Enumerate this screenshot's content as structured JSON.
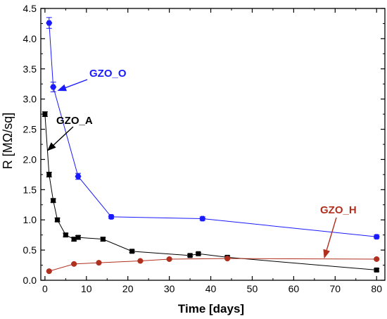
{
  "chart_data": {
    "type": "scatter",
    "title": "",
    "xlabel": "Time [days]",
    "ylabel": "R [MΩ/sq]",
    "xlim": [
      -1,
      82
    ],
    "ylim": [
      0,
      4.5
    ],
    "x_ticks": [
      0,
      10,
      20,
      30,
      40,
      50,
      60,
      70,
      80
    ],
    "y_ticks": [
      0.0,
      0.5,
      1.0,
      1.5,
      2.0,
      2.5,
      3.0,
      3.5,
      4.0,
      4.5
    ],
    "x_tick_labels": [
      "0",
      "10",
      "20",
      "30",
      "40",
      "50",
      "60",
      "70",
      "80"
    ],
    "y_tick_labels": [
      "0.0",
      "0.5",
      "1.0",
      "1.5",
      "2.0",
      "2.5",
      "3.0",
      "3.5",
      "4.0",
      "4.5"
    ],
    "grid": false,
    "series": [
      {
        "name": "GZO_O",
        "color": "#1a1aff",
        "marker": "hexagon",
        "x": [
          1,
          2,
          8,
          16,
          38,
          80
        ],
        "y": [
          4.26,
          3.2,
          1.72,
          1.05,
          1.02,
          0.72
        ],
        "err": [
          0.09,
          0.08,
          0.05,
          0.03,
          0.03,
          0.03
        ]
      },
      {
        "name": "GZO_A",
        "color": "#000000",
        "marker": "square",
        "x": [
          0,
          1,
          2,
          3,
          5,
          7,
          8,
          14,
          21,
          35,
          37,
          44,
          80
        ],
        "y": [
          2.75,
          1.75,
          1.32,
          1.0,
          0.75,
          0.68,
          0.71,
          0.68,
          0.48,
          0.41,
          0.44,
          0.38,
          0.17
        ],
        "err": [
          0.04,
          0.04,
          0.03,
          0.03,
          0.03,
          0.03,
          0.03,
          0.03,
          0.02,
          0.02,
          0.02,
          0.02,
          0.02
        ]
      },
      {
        "name": "GZO_H",
        "color": "#b03020",
        "marker": "circle",
        "x": [
          1,
          7,
          13,
          23,
          30,
          44,
          80
        ],
        "y": [
          0.15,
          0.27,
          0.29,
          0.32,
          0.35,
          0.36,
          0.35
        ],
        "err": [
          0.01,
          0.01,
          0.01,
          0.01,
          0.01,
          0.01,
          0.01
        ]
      }
    ],
    "annotations": [
      {
        "text": "GZO_O",
        "color": "#1a1aff"
      },
      {
        "text": "GZO_A",
        "color": "#000000"
      },
      {
        "text": "GZO_H",
        "color": "#b03020"
      }
    ]
  }
}
